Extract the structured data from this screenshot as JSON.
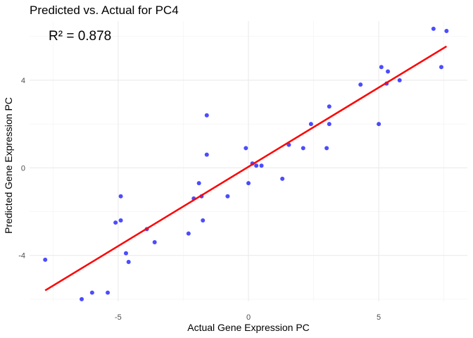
{
  "chart_data": {
    "type": "scatter",
    "title": "Predicted vs. Actual for PC4",
    "xlabel": "Actual Gene Expression PC",
    "ylabel": "Predicted Gene Expression PC",
    "annotation": "R² = 0.878",
    "xlim": [
      -8.4,
      8.4
    ],
    "ylim": [
      -6.1,
      6.7
    ],
    "x_ticks": [
      -5,
      0,
      5
    ],
    "x_tick_labels": [
      "-5",
      "0",
      "5"
    ],
    "y_ticks": [
      -4,
      0,
      4
    ],
    "y_tick_labels": [
      "-4",
      "0",
      "4"
    ],
    "grid": true,
    "point_color": "#0000ff",
    "line_color": "#ff0000",
    "points": [
      {
        "x": -7.8,
        "y": -4.2
      },
      {
        "x": -6.4,
        "y": -6.0
      },
      {
        "x": -6.0,
        "y": -5.7
      },
      {
        "x": -5.4,
        "y": -5.7
      },
      {
        "x": -5.1,
        "y": -2.5
      },
      {
        "x": -4.9,
        "y": -2.4
      },
      {
        "x": -4.9,
        "y": -1.3
      },
      {
        "x": -4.7,
        "y": -3.9
      },
      {
        "x": -4.6,
        "y": -4.3
      },
      {
        "x": -3.9,
        "y": -2.8
      },
      {
        "x": -3.6,
        "y": -3.4
      },
      {
        "x": -2.3,
        "y": -3.0
      },
      {
        "x": -2.1,
        "y": -1.4
      },
      {
        "x": -1.9,
        "y": -0.7
      },
      {
        "x": -1.8,
        "y": -1.3
      },
      {
        "x": -1.75,
        "y": -2.4
      },
      {
        "x": -1.6,
        "y": 2.4
      },
      {
        "x": -1.6,
        "y": 0.6
      },
      {
        "x": -0.8,
        "y": -1.3
      },
      {
        "x": -0.1,
        "y": 0.9
      },
      {
        "x": 0.0,
        "y": -0.7
      },
      {
        "x": 0.15,
        "y": 0.2
      },
      {
        "x": 0.3,
        "y": 0.1
      },
      {
        "x": 0.5,
        "y": 0.1
      },
      {
        "x": 1.3,
        "y": -0.5
      },
      {
        "x": 1.55,
        "y": 1.05
      },
      {
        "x": 2.1,
        "y": 0.9
      },
      {
        "x": 2.4,
        "y": 2.0
      },
      {
        "x": 3.0,
        "y": 0.9
      },
      {
        "x": 3.1,
        "y": 2.0
      },
      {
        "x": 3.1,
        "y": 2.8
      },
      {
        "x": 4.3,
        "y": 3.8
      },
      {
        "x": 5.0,
        "y": 2.0
      },
      {
        "x": 5.1,
        "y": 4.6
      },
      {
        "x": 5.3,
        "y": 3.85
      },
      {
        "x": 5.35,
        "y": 4.4
      },
      {
        "x": 5.8,
        "y": 4.0
      },
      {
        "x": 7.1,
        "y": 6.35
      },
      {
        "x": 7.4,
        "y": 4.6
      },
      {
        "x": 7.6,
        "y": 6.25
      }
    ],
    "fit_line": {
      "x": [
        -7.8,
        7.6
      ],
      "y": [
        -5.6,
        5.55
      ]
    }
  }
}
